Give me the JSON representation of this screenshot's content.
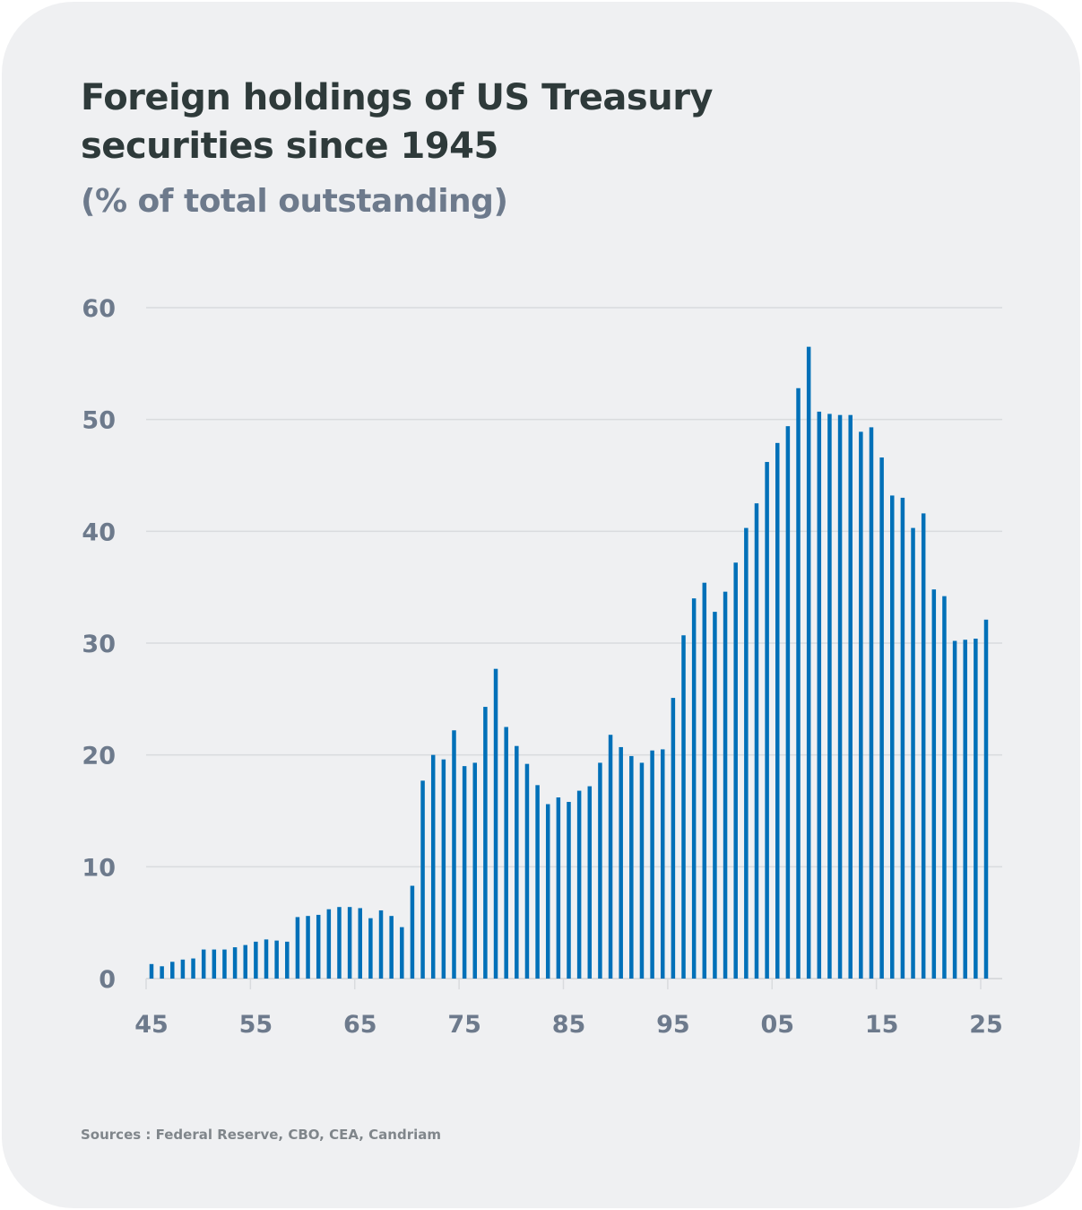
{
  "card": {
    "title": "Foreign holdings of US Treasury securities since 1945",
    "title_line1": "Foreign holdings of US Treasury",
    "title_line2": "securities since 1945",
    "subtitle": "(% of total outstanding)",
    "source": "Sources : Federal Reserve, CBO, CEA, Candriam"
  },
  "colors": {
    "bar": "#0070b8",
    "grid": "#d9dbde",
    "axis_label": "#6d7a8c",
    "title": "#2e3a3a",
    "background": "#eff0f2"
  },
  "chart_data": {
    "type": "bar",
    "title": "Foreign holdings of US Treasury securities since 1945",
    "subtitle": "(% of total outstanding)",
    "xlabel": "",
    "ylabel": "% of total outstanding",
    "ylim": [
      0,
      60
    ],
    "yticks": [
      0,
      10,
      20,
      30,
      40,
      50,
      60
    ],
    "xtick_years": [
      1945,
      1955,
      1965,
      1975,
      1985,
      1995,
      2005,
      2015,
      2025
    ],
    "xtick_labels": [
      "45",
      "55",
      "65",
      "75",
      "85",
      "95",
      "05",
      "15",
      "25"
    ],
    "grid": true,
    "legend": "none",
    "categories": [
      1945,
      1946,
      1947,
      1948,
      1949,
      1950,
      1951,
      1952,
      1953,
      1954,
      1955,
      1956,
      1957,
      1958,
      1959,
      1960,
      1961,
      1962,
      1963,
      1964,
      1965,
      1966,
      1967,
      1968,
      1969,
      1970,
      1971,
      1972,
      1973,
      1974,
      1975,
      1976,
      1977,
      1978,
      1979,
      1980,
      1981,
      1982,
      1983,
      1984,
      1985,
      1986,
      1987,
      1988,
      1989,
      1990,
      1991,
      1992,
      1993,
      1994,
      1995,
      1996,
      1997,
      1998,
      1999,
      2000,
      2001,
      2002,
      2003,
      2004,
      2005,
      2006,
      2007,
      2008,
      2009,
      2010,
      2011,
      2012,
      2013,
      2014,
      2015,
      2016,
      2017,
      2018,
      2019,
      2020,
      2021,
      2022,
      2023,
      2024,
      2025
    ],
    "values": [
      1.3,
      1.1,
      1.5,
      1.7,
      1.8,
      2.6,
      2.6,
      2.6,
      2.8,
      3.0,
      3.3,
      3.5,
      3.4,
      3.3,
      5.5,
      5.6,
      5.7,
      6.2,
      6.4,
      6.4,
      6.3,
      5.4,
      6.1,
      5.6,
      4.6,
      8.3,
      17.7,
      20.0,
      19.6,
      22.2,
      19.0,
      19.3,
      24.3,
      27.7,
      22.5,
      20.8,
      19.2,
      17.3,
      15.6,
      16.2,
      15.8,
      16.8,
      17.2,
      19.3,
      21.8,
      20.7,
      19.9,
      19.3,
      20.4,
      20.5,
      25.1,
      30.7,
      34.0,
      35.4,
      32.8,
      34.6,
      37.2,
      40.3,
      42.5,
      46.2,
      47.9,
      49.4,
      52.8,
      56.5,
      50.7,
      50.5,
      50.4,
      50.4,
      48.9,
      49.3,
      46.6,
      43.2,
      43.0,
      40.3,
      41.6,
      34.8,
      34.2,
      30.2,
      30.3,
      30.4,
      32.1
    ],
    "source": "Sources : Federal Reserve, CBO, CEA, Candriam"
  }
}
